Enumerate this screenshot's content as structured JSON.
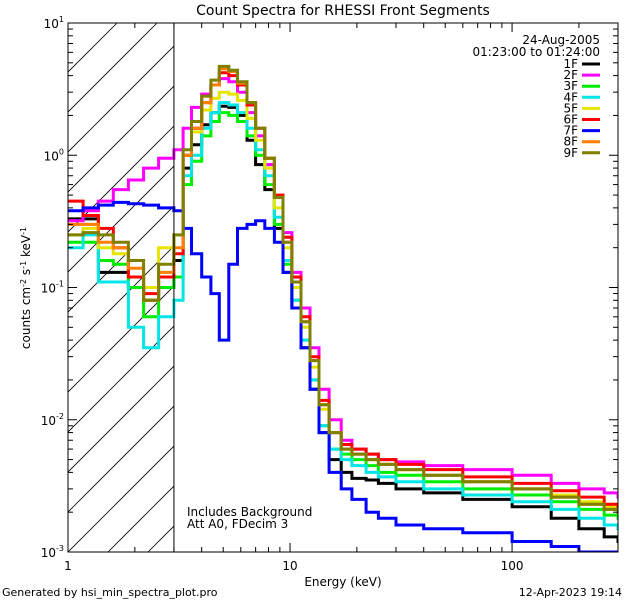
{
  "chart_data": {
    "type": "line",
    "title": "Count Spectra for RHESSI Front Segments",
    "xlabel": "Energy (keV)",
    "ylabel_parts": [
      "counts cm",
      "-2",
      " s",
      "-1",
      " keV",
      "-1"
    ],
    "xscale": "log",
    "yscale": "log",
    "xlim": [
      1,
      300
    ],
    "ylim": [
      0.001,
      10
    ],
    "x_tick_labels": [
      {
        "value": 1,
        "label": "1"
      },
      {
        "value": 10,
        "label": "10"
      },
      {
        "value": 100,
        "label": "100"
      }
    ],
    "y_tick_labels": [
      {
        "value": 10,
        "base": "10",
        "exp": "1"
      },
      {
        "value": 1,
        "base": "10",
        "exp": "0"
      },
      {
        "value": 0.1,
        "base": "10",
        "exp": "-1"
      },
      {
        "value": 0.01,
        "base": "10",
        "exp": "-2"
      },
      {
        "value": 0.001,
        "base": "10",
        "exp": "-3"
      }
    ],
    "hatched_region": {
      "xmin": 1,
      "xmax": 3
    },
    "date": "24-Aug-2005",
    "time_range": "01:23:00 to 01:24:00",
    "annotations": [
      "Includes Background",
      "Att A0, FDecim 3"
    ],
    "legend_position": "top-right",
    "series": [
      {
        "name": "1F",
        "color": "#000000",
        "x": [
          1.0,
          1.17,
          1.37,
          1.6,
          1.87,
          2.19,
          2.56,
          3.0,
          3.3,
          3.6,
          4.0,
          4.4,
          4.8,
          5.3,
          5.8,
          6.4,
          7.0,
          7.7,
          8.5,
          9.3,
          10.2,
          11.2,
          12.3,
          13.5,
          15,
          17,
          19,
          22,
          25,
          30,
          40,
          60,
          100,
          150,
          200,
          260,
          300
        ],
        "y": [
          0.33,
          0.33,
          0.13,
          0.13,
          0.1,
          0.08,
          0.1,
          0.16,
          0.8,
          1.2,
          1.7,
          2.1,
          2.35,
          2.3,
          2.0,
          1.3,
          0.85,
          0.55,
          0.28,
          0.13,
          0.07,
          0.035,
          0.017,
          0.008,
          0.005,
          0.004,
          0.0036,
          0.0035,
          0.0033,
          0.003,
          0.0028,
          0.0025,
          0.0022,
          0.0018,
          0.0015,
          0.0013,
          0.0012
        ]
      },
      {
        "name": "2F",
        "color": "#ff00ff",
        "x": [
          1.0,
          1.17,
          1.37,
          1.6,
          1.87,
          2.19,
          2.56,
          3.0,
          3.3,
          3.6,
          4.0,
          4.4,
          4.8,
          5.3,
          5.8,
          6.4,
          7.0,
          7.7,
          8.5,
          9.3,
          10.2,
          11.2,
          12.3,
          13.5,
          15,
          17,
          19,
          22,
          25,
          30,
          40,
          60,
          100,
          150,
          200,
          260,
          300
        ],
        "y": [
          0.32,
          0.38,
          0.45,
          0.55,
          0.65,
          0.8,
          0.95,
          1.1,
          1.6,
          2.3,
          2.9,
          3.4,
          3.8,
          3.6,
          3.0,
          2.1,
          1.4,
          0.85,
          0.48,
          0.26,
          0.13,
          0.07,
          0.035,
          0.017,
          0.01,
          0.007,
          0.006,
          0.0055,
          0.005,
          0.0048,
          0.0045,
          0.0042,
          0.0038,
          0.0033,
          0.003,
          0.0028,
          0.0026
        ]
      },
      {
        "name": "3F",
        "color": "#00ee00",
        "x": [
          1.0,
          1.17,
          1.37,
          1.6,
          1.87,
          2.19,
          2.56,
          3.0,
          3.3,
          3.6,
          4.0,
          4.4,
          4.8,
          5.3,
          5.8,
          6.4,
          7.0,
          7.7,
          8.5,
          9.3,
          10.2,
          11.2,
          12.3,
          13.5,
          15,
          17,
          19,
          22,
          25,
          30,
          40,
          60,
          100,
          150,
          200,
          260,
          300
        ],
        "y": [
          0.22,
          0.22,
          0.16,
          0.15,
          0.1,
          0.06,
          0.1,
          0.12,
          0.6,
          0.9,
          1.4,
          1.8,
          2.1,
          2.0,
          1.8,
          1.4,
          1.0,
          0.6,
          0.3,
          0.15,
          0.08,
          0.04,
          0.02,
          0.009,
          0.006,
          0.0055,
          0.005,
          0.0045,
          0.004,
          0.0038,
          0.0034,
          0.003,
          0.0027,
          0.0024,
          0.0021,
          0.0019,
          0.0018
        ]
      },
      {
        "name": "4F",
        "color": "#00e5e5",
        "x": [
          1.0,
          1.17,
          1.37,
          1.6,
          1.87,
          2.19,
          2.56,
          3.0,
          3.3,
          3.6,
          4.0,
          4.4,
          4.8,
          5.3,
          5.8,
          6.4,
          7.0,
          7.7,
          8.5,
          9.3,
          10.2,
          11.2,
          12.3,
          13.5,
          15,
          17,
          19,
          22,
          25,
          30,
          40,
          60,
          100,
          150,
          200,
          260,
          300
        ],
        "y": [
          0.2,
          0.25,
          0.11,
          0.11,
          0.05,
          0.035,
          0.06,
          0.08,
          0.7,
          1.0,
          1.6,
          2.1,
          2.5,
          2.4,
          2.1,
          1.6,
          1.1,
          0.7,
          0.34,
          0.16,
          0.08,
          0.04,
          0.02,
          0.009,
          0.006,
          0.005,
          0.0045,
          0.004,
          0.0037,
          0.0034,
          0.003,
          0.0027,
          0.0024,
          0.0021,
          0.0018,
          0.0016,
          0.0015
        ]
      },
      {
        "name": "5F",
        "color": "#e5e500",
        "x": [
          1.0,
          1.17,
          1.37,
          1.6,
          1.87,
          2.19,
          2.56,
          3.0,
          3.3,
          3.6,
          4.0,
          4.4,
          4.8,
          5.3,
          5.8,
          6.4,
          7.0,
          7.7,
          8.5,
          9.3,
          10.2,
          11.2,
          12.3,
          13.5,
          15,
          17,
          19,
          22,
          25,
          30,
          40,
          60,
          100,
          150,
          200,
          260,
          300
        ],
        "y": [
          0.25,
          0.28,
          0.2,
          0.18,
          0.12,
          0.1,
          0.2,
          0.25,
          1.0,
          1.5,
          2.2,
          2.7,
          3.0,
          2.9,
          2.6,
          1.9,
          1.3,
          0.8,
          0.4,
          0.2,
          0.1,
          0.05,
          0.025,
          0.012,
          0.008,
          0.006,
          0.0055,
          0.005,
          0.0046,
          0.0042,
          0.0038,
          0.0034,
          0.003,
          0.0027,
          0.0024,
          0.0022,
          0.002
        ]
      },
      {
        "name": "6F",
        "color": "#ff0000",
        "x": [
          1.0,
          1.17,
          1.37,
          1.6,
          1.87,
          2.19,
          2.56,
          3.0,
          3.3,
          3.6,
          4.0,
          4.4,
          4.8,
          5.3,
          5.8,
          6.4,
          7.0,
          7.7,
          8.5,
          9.3,
          10.2,
          11.2,
          12.3,
          13.5,
          15,
          17,
          19,
          22,
          25,
          30,
          40,
          60,
          100,
          150,
          200,
          260,
          300
        ],
        "y": [
          0.45,
          0.35,
          0.28,
          0.2,
          0.12,
          0.09,
          0.12,
          0.18,
          1.0,
          1.6,
          2.5,
          3.4,
          4.2,
          4.0,
          3.4,
          2.4,
          1.6,
          0.95,
          0.5,
          0.24,
          0.12,
          0.06,
          0.03,
          0.014,
          0.008,
          0.0065,
          0.006,
          0.0055,
          0.005,
          0.0046,
          0.0042,
          0.0037,
          0.0033,
          0.0029,
          0.0026,
          0.0023,
          0.0022
        ]
      },
      {
        "name": "7F",
        "color": "#0000ff",
        "x": [
          1.0,
          1.17,
          1.37,
          1.6,
          1.87,
          2.19,
          2.56,
          3.0,
          3.3,
          3.6,
          4.0,
          4.4,
          4.8,
          5.3,
          5.8,
          6.4,
          7.0,
          7.7,
          8.5,
          9.3,
          10.2,
          11.2,
          12.3,
          13.5,
          15,
          17,
          19,
          22,
          25,
          30,
          40,
          60,
          100,
          150,
          200,
          260,
          300
        ],
        "y": [
          0.38,
          0.4,
          0.42,
          0.44,
          0.43,
          0.42,
          0.4,
          0.38,
          0.28,
          0.18,
          0.12,
          0.09,
          0.04,
          0.15,
          0.28,
          0.3,
          0.32,
          0.28,
          0.22,
          0.13,
          0.07,
          0.035,
          0.017,
          0.008,
          0.004,
          0.003,
          0.0025,
          0.002,
          0.0018,
          0.0016,
          0.0015,
          0.0014,
          0.0012,
          0.0011,
          0.001,
          0.001,
          0.001
        ]
      },
      {
        "name": "8F",
        "color": "#ff7f00",
        "x": [
          1.0,
          1.17,
          1.37,
          1.6,
          1.87,
          2.19,
          2.56,
          3.0,
          3.3,
          3.6,
          4.0,
          4.4,
          4.8,
          5.3,
          5.8,
          6.4,
          7.0,
          7.7,
          8.5,
          9.3,
          10.2,
          11.2,
          12.3,
          13.5,
          15,
          17,
          19,
          22,
          25,
          30,
          40,
          60,
          100,
          150,
          200,
          260,
          300
        ],
        "y": [
          0.3,
          0.3,
          0.22,
          0.2,
          0.14,
          0.08,
          0.13,
          0.2,
          1.0,
          1.6,
          2.5,
          3.4,
          4.5,
          4.3,
          3.5,
          2.5,
          1.6,
          0.95,
          0.48,
          0.22,
          0.11,
          0.055,
          0.028,
          0.013,
          0.008,
          0.006,
          0.0055,
          0.005,
          0.0046,
          0.0042,
          0.0038,
          0.0034,
          0.003,
          0.0026,
          0.0023,
          0.0021,
          0.002
        ]
      },
      {
        "name": "9F",
        "color": "#7f7f00",
        "x": [
          1.0,
          1.17,
          1.37,
          1.6,
          1.87,
          2.19,
          2.56,
          3.0,
          3.3,
          3.6,
          4.0,
          4.4,
          4.8,
          5.3,
          5.8,
          6.4,
          7.0,
          7.7,
          8.5,
          9.3,
          10.2,
          11.2,
          12.3,
          13.5,
          15,
          17,
          19,
          22,
          25,
          30,
          40,
          60,
          100,
          150,
          200,
          260,
          300
        ],
        "y": [
          0.25,
          0.26,
          0.25,
          0.22,
          0.16,
          0.08,
          0.15,
          0.25,
          1.1,
          1.8,
          2.8,
          3.7,
          4.7,
          4.4,
          3.6,
          2.5,
          1.6,
          0.95,
          0.48,
          0.22,
          0.11,
          0.055,
          0.028,
          0.013,
          0.008,
          0.006,
          0.0055,
          0.005,
          0.0046,
          0.0042,
          0.0038,
          0.0034,
          0.003,
          0.0026,
          0.0023,
          0.0021,
          0.002
        ]
      }
    ]
  },
  "footer": {
    "generated_by": "Generated by hsi_min_spectra_plot.pro",
    "timestamp": "12-Apr-2023 19:14"
  }
}
